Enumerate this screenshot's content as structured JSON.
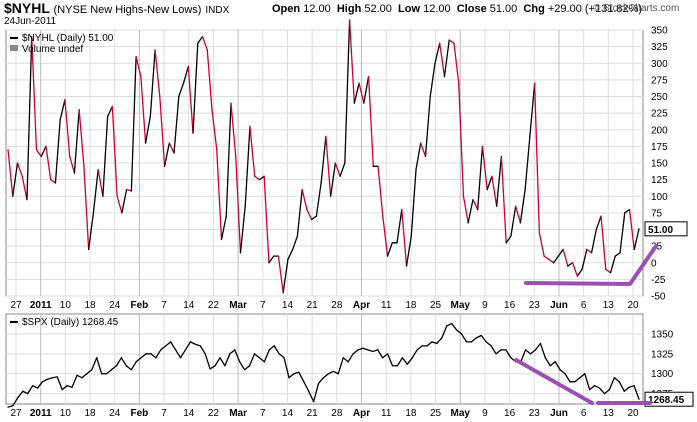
{
  "header": {
    "symbol": "$NYHL",
    "description": "(NYSE New Highs-New Lows)",
    "exchange": "INDX",
    "date": "24Jun-2011",
    "open_label": "Open",
    "open": "12.00",
    "high_label": "High",
    "high": "52.00",
    "low_label": "Low",
    "low": "12.00",
    "close_label": "Close",
    "close": "51.00",
    "chg_label": "Chg",
    "chg": "+29.00 (+131.82%)",
    "brand": "© StockCharts.com"
  },
  "colors": {
    "up": "#000000",
    "down": "#cc0033",
    "annotation": "#9b4fb0",
    "grid": "#dddddd",
    "spx_line": "#000000"
  },
  "x_ticks": [
    "27",
    "2011",
    "10",
    "18",
    "24",
    "Feb",
    "7",
    "14",
    "22",
    "Mar",
    "7",
    "14",
    "21",
    "28",
    "Apr",
    "11",
    "18",
    "25",
    "May",
    "9",
    "16",
    "23",
    "Jun",
    "6",
    "13",
    "20"
  ],
  "chart_data": [
    {
      "type": "line",
      "legend": "$NYHL (Daily) 51.00",
      "legend2": "Volume undef",
      "last_value_label": "51.00",
      "ylim": [
        -50,
        350
      ],
      "y_ticks": [
        -50,
        -25,
        0,
        25,
        50,
        75,
        100,
        125,
        150,
        175,
        200,
        225,
        250,
        275,
        300,
        325,
        350
      ],
      "color_rule": "red segments when value falls, black when value rises",
      "values": [
        170,
        100,
        150,
        130,
        95,
        340,
        170,
        160,
        175,
        125,
        120,
        215,
        245,
        160,
        135,
        230,
        145,
        20,
        75,
        140,
        100,
        220,
        235,
        100,
        75,
        110,
        108,
        310,
        280,
        180,
        220,
        320,
        250,
        145,
        180,
        165,
        250,
        270,
        295,
        195,
        330,
        340,
        320,
        230,
        170,
        35,
        70,
        240,
        160,
        15,
        85,
        205,
        130,
        125,
        130,
        0,
        10,
        10,
        -45,
        5,
        20,
        40,
        110,
        80,
        65,
        70,
        120,
        190,
        100,
        150,
        130,
        150,
        365,
        240,
        270,
        240,
        280,
        145,
        145,
        70,
        10,
        30,
        30,
        80,
        -5,
        40,
        140,
        180,
        160,
        250,
        300,
        330,
        280,
        335,
        330,
        270,
        100,
        60,
        95,
        80,
        175,
        110,
        130,
        85,
        160,
        30,
        40,
        85,
        60,
        110,
        190,
        270,
        45,
        10,
        5,
        0,
        10,
        20,
        -5,
        0,
        -20,
        -10,
        20,
        15,
        50,
        70,
        -10,
        -15,
        10,
        15,
        75,
        80,
        20,
        51
      ],
      "annotation": "purple line under late-June lows then rising"
    },
    {
      "type": "line",
      "legend": "$SPX (Daily) 1268.45",
      "last_value_label": "1268.45",
      "ylim": [
        1262,
        1375
      ],
      "y_ticks": [
        1275,
        1300,
        1325,
        1350
      ],
      "values": [
        1258,
        1260,
        1270,
        1278,
        1275,
        1285,
        1282,
        1290,
        1293,
        1295,
        1296,
        1280,
        1285,
        1283,
        1298,
        1295,
        1300,
        1305,
        1320,
        1300,
        1300,
        1305,
        1310,
        1320,
        1310,
        1305,
        1315,
        1320,
        1325,
        1325,
        1320,
        1330,
        1335,
        1340,
        1330,
        1320,
        1330,
        1340,
        1337,
        1335,
        1325,
        1306,
        1310,
        1320,
        1310,
        1325,
        1330,
        1315,
        1305,
        1310,
        1325,
        1320,
        1315,
        1330,
        1335,
        1325,
        1320,
        1295,
        1300,
        1302,
        1290,
        1278,
        1265,
        1288,
        1295,
        1300,
        1303,
        1300,
        1320,
        1315,
        1325,
        1330,
        1332,
        1330,
        1328,
        1330,
        1320,
        1325,
        1310,
        1310,
        1320,
        1312,
        1320,
        1330,
        1335,
        1335,
        1340,
        1338,
        1345,
        1360,
        1363,
        1355,
        1350,
        1340,
        1340,
        1345,
        1348,
        1340,
        1335,
        1325,
        1330,
        1330,
        1320,
        1315,
        1315,
        1330,
        1325,
        1330,
        1338,
        1320,
        1310,
        1315,
        1305,
        1300,
        1290,
        1290,
        1295,
        1300,
        1280,
        1285,
        1282,
        1275,
        1280,
        1295,
        1290,
        1278,
        1283,
        1285,
        1268
      ]
    }
  ]
}
